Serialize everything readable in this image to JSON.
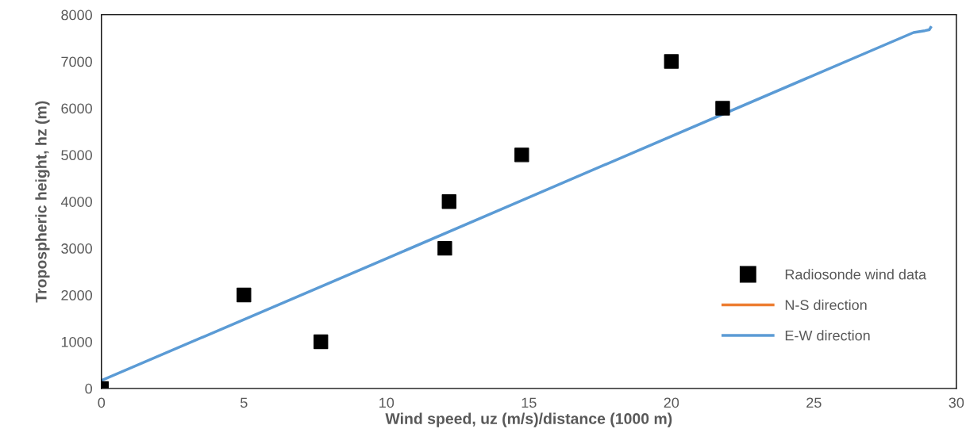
{
  "chart_data": {
    "type": "scatter",
    "xlabel": "Wind speed, uz (m/s)/distance (1000 m)",
    "ylabel": "Tropospheric height, hz (m)",
    "xlim": [
      0,
      30
    ],
    "xticks": [
      0,
      5,
      10,
      15,
      20,
      25,
      30
    ],
    "ylim": [
      0,
      8000
    ],
    "yticks": [
      0,
      1000,
      2000,
      3000,
      4000,
      5000,
      6000,
      7000,
      8000
    ],
    "grid": false,
    "legend": "right",
    "series": [
      {
        "name": "Radiosonde wind data",
        "marker": "square",
        "color": "#000000",
        "x": [
          0,
          5,
          7.7,
          12.05,
          12.2,
          14.75,
          20,
          21.8
        ],
        "values": [
          0,
          2000,
          1000,
          3000,
          4000,
          5000,
          7000,
          6000
        ]
      },
      {
        "name": "N-S direction",
        "type": "line",
        "marker": "none",
        "color": "#ed7d31"
      },
      {
        "name": "E-W direction",
        "type": "line",
        "marker": "none",
        "color": "#5b9bd5",
        "x": [
          0,
          10,
          20,
          28.5,
          28.9,
          29.05,
          29.1
        ],
        "values": [
          170,
          2780,
          5400,
          7620,
          7660,
          7680,
          7730
        ]
      }
    ]
  }
}
